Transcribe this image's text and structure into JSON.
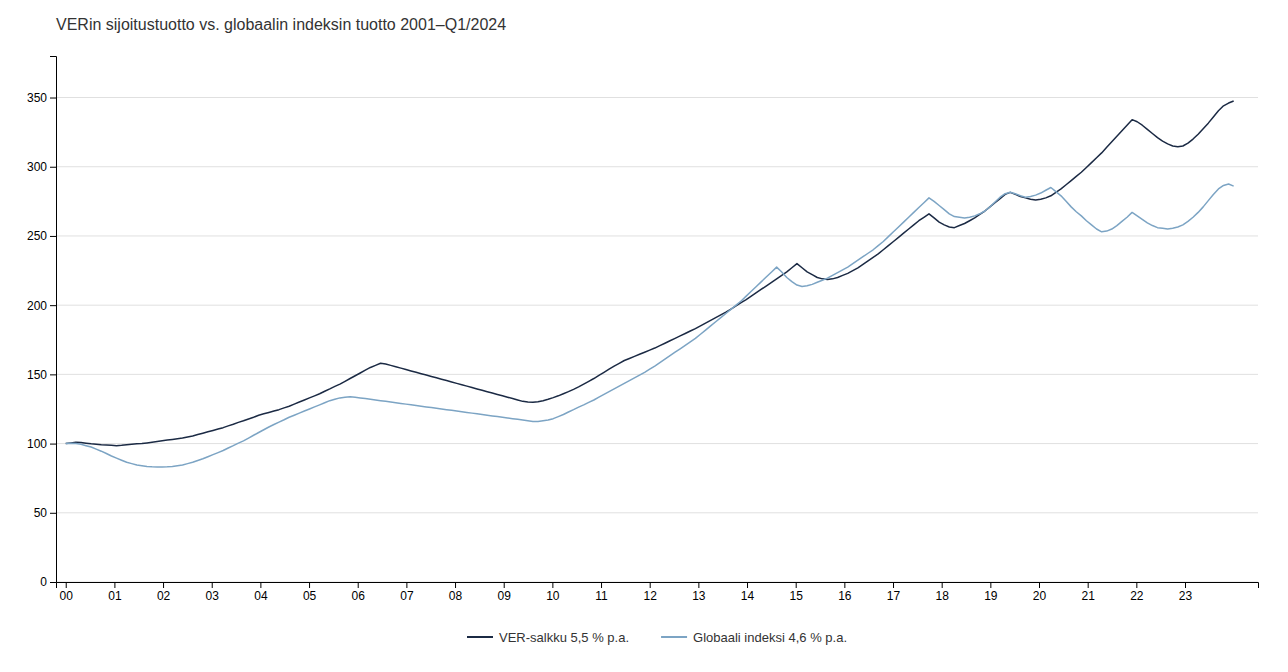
{
  "chart_data": {
    "type": "line",
    "title": "VERin sijoitustuotto vs. globaalin indeksin tuotto 2001–Q1/2024",
    "x": [
      2000,
      2000.1043,
      2000.2087,
      2000.313,
      2000.4174,
      2000.5217,
      2000.6261,
      2000.7304,
      2000.8348,
      2000.9391,
      2001.0435,
      2001.1478,
      2001.2522,
      2001.3565,
      2001.4609,
      2001.5652,
      2001.6696,
      2001.7739,
      2001.8783,
      2001.9826,
      2002.087,
      2002.1913,
      2002.2957,
      2002.4,
      2002.5043,
      2002.6087,
      2002.713,
      2002.8174,
      2002.9217,
      2003.0261,
      2003.1304,
      2003.2348,
      2003.3391,
      2003.4435,
      2003.5478,
      2003.6522,
      2003.7565,
      2003.8609,
      2003.9652,
      2004.0696,
      2004.1739,
      2004.2783,
      2004.3826,
      2004.487,
      2004.5913,
      2004.6957,
      2004.8,
      2004.9043,
      2005.0087,
      2005.113,
      2005.2174,
      2005.3217,
      2005.4261,
      2005.5304,
      2005.6348,
      2005.7391,
      2005.8435,
      2005.9478,
      2006.0522,
      2006.1565,
      2006.2609,
      2006.3652,
      2006.4696,
      2006.5739,
      2006.6783,
      2006.7826,
      2006.887,
      2006.9913,
      2007.0957,
      2007.2,
      2007.3043,
      2007.4087,
      2007.513,
      2007.6174,
      2007.7217,
      2007.8261,
      2007.9304,
      2008.0348,
      2008.1391,
      2008.2435,
      2008.3478,
      2008.4522,
      2008.5565,
      2008.6609,
      2008.7652,
      2008.8696,
      2008.9739,
      2009.0783,
      2009.1826,
      2009.287,
      2009.3913,
      2009.4957,
      2009.6,
      2009.7043,
      2009.8087,
      2009.913,
      2010.0174,
      2010.1217,
      2010.2261,
      2010.3304,
      2010.4348,
      2010.5391,
      2010.6435,
      2010.7478,
      2010.8522,
      2010.9565,
      2011.0609,
      2011.1652,
      2011.2696,
      2011.3739,
      2011.4783,
      2011.5826,
      2011.687,
      2011.7913,
      2011.8957,
      2012,
      2012.1043,
      2012.2087,
      2012.313,
      2012.4174,
      2012.5217,
      2012.6261,
      2012.7304,
      2012.8348,
      2012.9391,
      2013.0435,
      2013.1478,
      2013.2522,
      2013.3565,
      2013.4609,
      2013.5652,
      2013.6696,
      2013.7739,
      2013.8783,
      2013.9826,
      2014.087,
      2014.1913,
      2014.2957,
      2014.4,
      2014.5043,
      2014.6087,
      2014.713,
      2014.8174,
      2014.9217,
      2015.0261,
      2015.1304,
      2015.2348,
      2015.3391,
      2015.4435,
      2015.5478,
      2015.6522,
      2015.7565,
      2015.8609,
      2015.9652,
      2016.0696,
      2016.1739,
      2016.2783,
      2016.3826,
      2016.487,
      2016.5913,
      2016.6957,
      2016.8,
      2016.9043,
      2017.0087,
      2017.113,
      2017.2174,
      2017.3217,
      2017.4261,
      2017.5304,
      2017.6348,
      2017.7391,
      2017.8435,
      2017.9478,
      2018.0522,
      2018.1565,
      2018.2609,
      2018.3652,
      2018.4696,
      2018.5739,
      2018.6783,
      2018.7826,
      2018.887,
      2018.9913,
      2019.0957,
      2019.2,
      2019.3043,
      2019.4087,
      2019.513,
      2019.6174,
      2019.7217,
      2019.8261,
      2019.9304,
      2020.0348,
      2020.1391,
      2020.2435,
      2020.3478,
      2020.4522,
      2020.5565,
      2020.6609,
      2020.7652,
      2020.8696,
      2020.9739,
      2021.0783,
      2021.1826,
      2021.287,
      2021.3913,
      2021.4957,
      2021.6,
      2021.7043,
      2021.8087,
      2021.913,
      2022.0174,
      2022.1217,
      2022.2261,
      2022.3304,
      2022.4348,
      2022.5391,
      2022.6435,
      2022.7478,
      2022.8522,
      2022.9565,
      2023.0609,
      2023.1652,
      2023.2696,
      2023.3739,
      2023.4783,
      2023.5826,
      2023.687,
      2023.7913,
      2023.8957,
      2024
    ],
    "series": [
      {
        "name": "VER-salkku 5,5 % p.a.",
        "color": "#1b2a44",
        "values": [
          100.0,
          100.5,
          101.0,
          100.8,
          100.3,
          99.8,
          99.5,
          99.2,
          99.0,
          98.8,
          98.5,
          98.8,
          99.2,
          99.5,
          99.8,
          100.0,
          100.5,
          101.0,
          101.5,
          102.0,
          102.5,
          103.0,
          103.5,
          104.0,
          104.8,
          105.5,
          106.5,
          107.5,
          108.5,
          109.5,
          110.5,
          111.5,
          112.8,
          114.0,
          115.3,
          116.5,
          117.8,
          119.0,
          120.5,
          121.5,
          122.5,
          123.5,
          124.5,
          125.8,
          127.0,
          128.5,
          130.0,
          131.5,
          133.0,
          134.5,
          136.0,
          137.8,
          139.5,
          141.3,
          143.0,
          145.0,
          147.0,
          149.0,
          151.0,
          153.0,
          155.0,
          156.5,
          158.0,
          157.5,
          156.5,
          155.5,
          154.5,
          153.5,
          152.5,
          151.5,
          150.5,
          149.5,
          148.5,
          147.5,
          146.5,
          145.5,
          144.5,
          143.5,
          142.5,
          141.5,
          140.5,
          139.5,
          138.5,
          137.5,
          136.5,
          135.5,
          134.5,
          133.5,
          132.5,
          131.5,
          130.5,
          130.0,
          129.8,
          130.2,
          131.0,
          132.0,
          133.2,
          134.5,
          136.0,
          137.5,
          139.2,
          141.0,
          143.0,
          145.0,
          147.0,
          149.3,
          151.5,
          153.8,
          156.0,
          158.0,
          160.0,
          161.5,
          163.0,
          164.5,
          166.0,
          167.5,
          169.0,
          170.8,
          172.5,
          174.3,
          176.0,
          177.8,
          179.5,
          181.3,
          183.0,
          185.0,
          187.0,
          189.0,
          191.0,
          193.0,
          195.0,
          197.2,
          199.5,
          201.8,
          204.0,
          206.5,
          209.0,
          211.5,
          214.0,
          216.5,
          219.0,
          221.5,
          224.0,
          227.0,
          230.0,
          227.0,
          224.0,
          222.0,
          220.0,
          219.0,
          218.5,
          219.0,
          220.0,
          221.5,
          223.0,
          225.0,
          227.0,
          229.5,
          232.0,
          234.5,
          237.0,
          240.0,
          243.0,
          246.0,
          249.0,
          252.0,
          255.0,
          258.0,
          261.0,
          263.5,
          266.0,
          263.0,
          260.0,
          258.0,
          256.5,
          256.0,
          257.5,
          259.0,
          261.0,
          263.0,
          265.5,
          268.0,
          271.0,
          274.0,
          277.0,
          280.0,
          281.5,
          280.0,
          278.5,
          277.5,
          276.5,
          276.0,
          276.5,
          277.5,
          279.0,
          281.5,
          284.0,
          287.0,
          290.0,
          293.0,
          296.0,
          299.5,
          303.0,
          306.5,
          310.0,
          314.0,
          318.0,
          322.0,
          326.0,
          330.0,
          334.0,
          332.5,
          330.0,
          327.0,
          324.0,
          321.0,
          318.5,
          316.5,
          315.0,
          314.5,
          315.0,
          317.0,
          320.0,
          323.5,
          327.5,
          331.5,
          336.0,
          340.5,
          344.0,
          346.0,
          347.5
        ]
      },
      {
        "name": "Globaali indeksi 4,6 % p.a.",
        "color": "#7ca4c4",
        "values": [
          100.0,
          100.3,
          100.0,
          99.5,
          98.5,
          97.5,
          96.0,
          94.5,
          92.8,
          91.0,
          89.5,
          88.0,
          86.5,
          85.5,
          84.5,
          84.0,
          83.5,
          83.2,
          83.0,
          83.0,
          83.2,
          83.5,
          84.0,
          84.5,
          85.5,
          86.5,
          87.8,
          89.0,
          90.5,
          92.0,
          93.5,
          95.0,
          96.8,
          98.5,
          100.3,
          102.0,
          104.0,
          106.0,
          108.0,
          110.0,
          112.0,
          113.8,
          115.5,
          117.2,
          119.0,
          120.5,
          122.0,
          123.5,
          125.0,
          126.5,
          128.0,
          129.5,
          131.0,
          132.0,
          133.0,
          133.5,
          133.8,
          133.5,
          133.0,
          132.5,
          132.0,
          131.5,
          131.0,
          130.5,
          130.0,
          129.5,
          129.0,
          128.5,
          128.0,
          127.5,
          127.0,
          126.5,
          126.0,
          125.5,
          125.0,
          124.5,
          124.0,
          123.5,
          123.0,
          122.5,
          122.0,
          121.5,
          121.0,
          120.5,
          120.0,
          119.5,
          119.0,
          118.5,
          118.0,
          117.5,
          117.0,
          116.5,
          116.0,
          116.0,
          116.5,
          117.0,
          118.0,
          119.5,
          121.0,
          122.8,
          124.5,
          126.3,
          128.0,
          129.8,
          131.5,
          133.5,
          135.5,
          137.5,
          139.5,
          141.5,
          143.5,
          145.5,
          147.5,
          149.5,
          151.5,
          153.8,
          156.0,
          158.5,
          161.0,
          163.5,
          166.0,
          168.5,
          171.0,
          173.5,
          176.0,
          179.0,
          182.0,
          185.0,
          188.0,
          191.0,
          194.0,
          197.0,
          200.0,
          203.0,
          206.5,
          210.0,
          213.5,
          217.0,
          220.5,
          224.0,
          227.5,
          224.0,
          220.0,
          217.0,
          214.5,
          213.5,
          214.0,
          215.0,
          216.5,
          218.0,
          219.5,
          221.5,
          223.5,
          225.5,
          227.5,
          230.0,
          232.5,
          235.0,
          237.5,
          240.0,
          243.0,
          246.0,
          249.5,
          253.0,
          256.5,
          260.0,
          263.5,
          267.0,
          270.5,
          274.0,
          277.5,
          275.0,
          272.0,
          269.0,
          266.0,
          264.0,
          263.5,
          263.0,
          263.5,
          264.5,
          266.0,
          268.0,
          271.0,
          274.5,
          278.0,
          280.5,
          281.5,
          280.5,
          279.0,
          278.0,
          278.5,
          279.5,
          281.0,
          283.0,
          285.0,
          282.0,
          279.0,
          275.0,
          271.0,
          267.5,
          264.5,
          261.0,
          258.0,
          255.0,
          253.0,
          253.5,
          255.0,
          257.5,
          260.5,
          263.5,
          267.0,
          264.5,
          262.0,
          259.5,
          257.5,
          256.0,
          255.5,
          255.0,
          255.5,
          256.5,
          258.0,
          260.5,
          263.5,
          267.0,
          271.0,
          275.5,
          280.0,
          284.0,
          286.5,
          287.5,
          286.0
        ]
      }
    ],
    "xlim": [
      1999.8,
      2024.5
    ],
    "xticks": [
      {
        "value": 2000,
        "label": "00"
      },
      {
        "value": 2001,
        "label": "01"
      },
      {
        "value": 2002,
        "label": "02"
      },
      {
        "value": 2003,
        "label": "03"
      },
      {
        "value": 2004,
        "label": "04"
      },
      {
        "value": 2005,
        "label": "05"
      },
      {
        "value": 2006,
        "label": "06"
      },
      {
        "value": 2007,
        "label": "07"
      },
      {
        "value": 2008,
        "label": "08"
      },
      {
        "value": 2009,
        "label": "09"
      },
      {
        "value": 2010,
        "label": "10"
      },
      {
        "value": 2011,
        "label": "11"
      },
      {
        "value": 2012,
        "label": "12"
      },
      {
        "value": 2013,
        "label": "13"
      },
      {
        "value": 2014,
        "label": "14"
      },
      {
        "value": 2015,
        "label": "15"
      },
      {
        "value": 2016,
        "label": "16"
      },
      {
        "value": 2017,
        "label": "17"
      },
      {
        "value": 2018,
        "label": "18"
      },
      {
        "value": 2019,
        "label": "19"
      },
      {
        "value": 2020,
        "label": "20"
      },
      {
        "value": 2021,
        "label": "21"
      },
      {
        "value": 2022,
        "label": "22"
      },
      {
        "value": 2023,
        "label": "23"
      }
    ],
    "ylim": [
      0,
      380
    ],
    "yticks": [
      0,
      50,
      100,
      150,
      200,
      250,
      300,
      350
    ],
    "grid": true,
    "legend": "bottom"
  }
}
